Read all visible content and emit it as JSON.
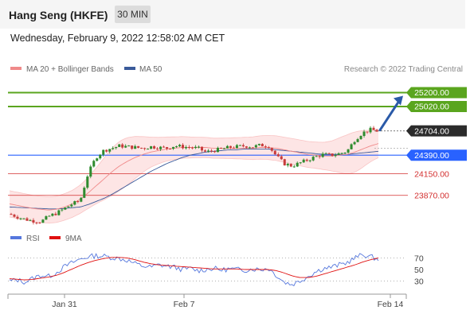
{
  "header": {
    "title": "Hang Seng (HKFE)",
    "interval": "30 MIN",
    "datetime": "Wednesday, February 9, 2022 12:58:02 AM CET"
  },
  "legend": {
    "ma20_label": "MA 20 + Bollinger Bands",
    "ma50_label": "MA 50",
    "copyright": "Research © 2022 Trading Central",
    "rsi_label": "RSI",
    "rsi_ma_label": "9MA"
  },
  "colors": {
    "ma20": "#f08a8a",
    "ma50": "#3a5a9a",
    "bollinger_fill": "#fde0e0",
    "candle_up": "#2e8b2e",
    "candle_down": "#c83c3c",
    "resistance": "#5aa51e",
    "support": "#d32f2f",
    "pivot": "#2962ff",
    "current": "#2b2b2b",
    "arrow": "#2a5aa8",
    "rsi": "#5577dd",
    "rsi_ma": "#e01010"
  },
  "chart_data": [
    {
      "type": "candlestick",
      "x_range": [
        "2022-01-28",
        "2022-02-14"
      ],
      "ylim": [
        23600,
        25400
      ],
      "x_ticks": [
        "Jan 31",
        "Feb 7",
        "Feb 14"
      ],
      "levels": {
        "resistance_2": {
          "label": "25200.00",
          "value": 25200
        },
        "resistance_1": {
          "label": "25020.00",
          "value": 25020
        },
        "current": {
          "label": "24704.00",
          "value": 24704
        },
        "pivot": {
          "label": "24390.00",
          "value": 24390
        },
        "support_1": {
          "label": "24150.00",
          "value": 24150
        },
        "support_2": {
          "label": "23870.00",
          "value": 23870
        }
      },
      "series_names": [
        "MA 20 + Bollinger Bands",
        "MA 50"
      ],
      "close_path": [
        23630,
        23590,
        23560,
        23540,
        23530,
        23600,
        23640,
        23700,
        23760,
        23800,
        24150,
        24360,
        24450,
        24480,
        24510,
        24500,
        24490,
        24480,
        24500,
        24490,
        24480,
        24510,
        24500,
        24490,
        24480,
        24430,
        24450,
        24470,
        24490,
        24500,
        24510,
        24500,
        24520,
        24510,
        24380,
        24280,
        24250,
        24290,
        24330,
        24370,
        24400,
        24390,
        24410,
        24440,
        24590,
        24680,
        24720,
        24700
      ],
      "ma20_path": [
        23760,
        23740,
        23720,
        23700,
        23690,
        23680,
        23690,
        23720,
        23760,
        23820,
        23900,
        23990,
        24080,
        24170,
        24250,
        24310,
        24360,
        24400,
        24430,
        24450,
        24470,
        24480,
        24490,
        24490,
        24490,
        24490,
        24480,
        24480,
        24480,
        24480,
        24480,
        24480,
        24490,
        24490,
        24480,
        24460,
        24440,
        24420,
        24400,
        24390,
        24380,
        24380,
        24390,
        24400,
        24430,
        24470,
        24510,
        24540
      ],
      "ma50_path": [
        23720,
        23715,
        23710,
        23705,
        23700,
        23695,
        23695,
        23700,
        23710,
        23720,
        23750,
        23790,
        23830,
        23880,
        23940,
        24000,
        24060,
        24120,
        24180,
        24230,
        24280,
        24320,
        24360,
        24390,
        24410,
        24430,
        24440,
        24450,
        24460,
        24460,
        24470,
        24470,
        24470,
        24470,
        24460,
        24450,
        24440,
        24430,
        24420,
        24410,
        24400,
        24400,
        24400,
        24400,
        24410,
        24420,
        24430,
        24440
      ]
    },
    {
      "type": "line",
      "name": "RSI",
      "ylim": [
        10,
        90
      ],
      "y_ticks": [
        "70",
        "50",
        "30"
      ],
      "reference_levels": [
        70,
        30
      ],
      "rsi_path": [
        30,
        32,
        28,
        35,
        40,
        38,
        45,
        55,
        62,
        68,
        72,
        74,
        73,
        71,
        69,
        66,
        60,
        56,
        54,
        58,
        56,
        54,
        50,
        52,
        48,
        50,
        52,
        49,
        51,
        50,
        49,
        51,
        50,
        52,
        40,
        28,
        24,
        30,
        38,
        46,
        52,
        54,
        58,
        62,
        70,
        76,
        72,
        68
      ],
      "ma9_path": [
        34,
        33,
        32,
        33,
        35,
        37,
        40,
        45,
        51,
        57,
        62,
        66,
        69,
        71,
        71,
        70,
        67,
        63,
        60,
        58,
        57,
        56,
        55,
        54,
        53,
        52,
        51,
        51,
        51,
        51,
        50,
        50,
        50,
        50,
        48,
        44,
        39,
        36,
        36,
        38,
        42,
        46,
        50,
        54,
        58,
        63,
        67,
        70
      ]
    }
  ]
}
